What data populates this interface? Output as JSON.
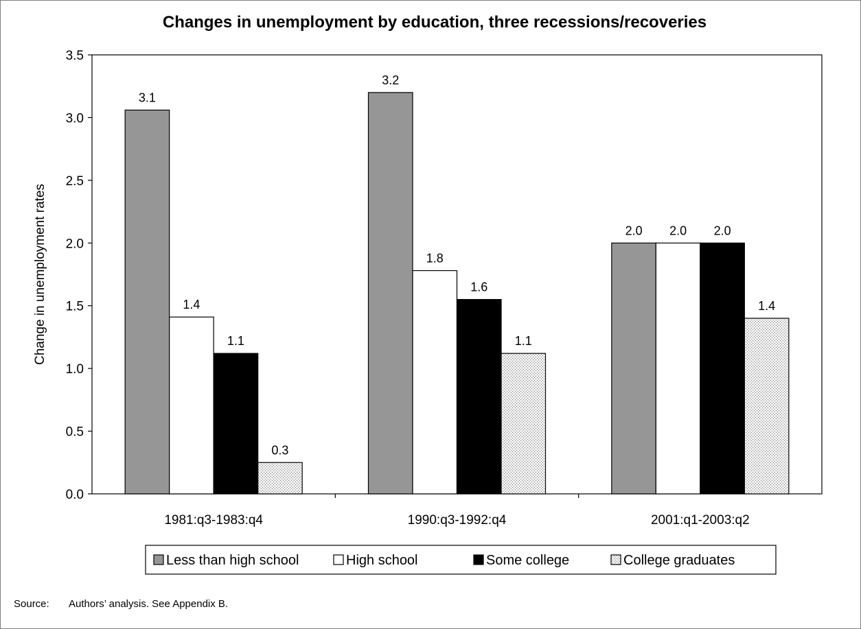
{
  "chart_data": {
    "type": "bar",
    "title": "Changes in unemployment by education, three recessions/recoveries",
    "xlabel": "",
    "ylabel": "Change in unemployment rates",
    "ylim": [
      0,
      3.5
    ],
    "yticks": [
      "0.0",
      "0.5",
      "1.0",
      "1.5",
      "2.0",
      "2.5",
      "3.0",
      "3.5"
    ],
    "categories": [
      "1981:q3-1983:q4",
      "1990:q3-1992:q4",
      "2001:q1-2003:q2"
    ],
    "series": [
      {
        "name": "Less than high school",
        "values": [
          3.06,
          3.2,
          2.0
        ],
        "labels": [
          "3.1",
          "3.2",
          "2.0"
        ],
        "color": "#969696",
        "pattern": "solid"
      },
      {
        "name": "High school",
        "values": [
          1.41,
          1.78,
          2.0
        ],
        "labels": [
          "1.4",
          "1.8",
          "2.0"
        ],
        "color": "#ffffff",
        "pattern": "solid"
      },
      {
        "name": "Some college",
        "values": [
          1.12,
          1.55,
          2.0
        ],
        "labels": [
          "1.1",
          "1.6",
          "2.0"
        ],
        "color": "#000000",
        "pattern": "solid"
      },
      {
        "name": "College graduates",
        "values": [
          0.25,
          1.12,
          1.4
        ],
        "labels": [
          "0.3",
          "1.1",
          "1.4"
        ],
        "color": "#dddddd",
        "pattern": "dots"
      }
    ],
    "legend_position": "bottom",
    "grid": false
  },
  "source": {
    "label": "Source:",
    "text": "Authors’ analysis. See Appendix B."
  }
}
